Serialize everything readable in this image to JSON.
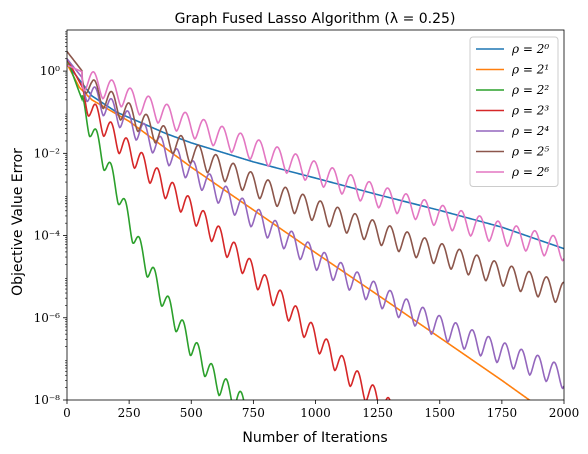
{
  "chart_data": {
    "type": "line",
    "title": "Graph Fused Lasso Algorithm (λ = 0.25)",
    "xlabel": "Number of Iterations",
    "ylabel": "Objective Value Error",
    "xlim": [
      0,
      2000
    ],
    "ylim": [
      1e-08,
      10
    ],
    "yscale": "log",
    "grid": false,
    "legend_position": "top-right",
    "x_ticks": [
      "0",
      "250",
      "500",
      "750",
      "1000",
      "1250",
      "1500",
      "1750",
      "2000"
    ],
    "y_ticks": [
      "10⁻⁸",
      "10⁻⁶",
      "10⁻⁴",
      "10⁻²",
      "10⁰"
    ],
    "x_tick_values": [
      0,
      250,
      500,
      750,
      1000,
      1250,
      1500,
      1750,
      2000
    ],
    "y_tick_values": [
      1e-08,
      1e-06,
      0.0001,
      0.01,
      1
    ],
    "series": [
      {
        "name": "ρ = 2⁰",
        "color": "#1f77b4",
        "oscillating": false,
        "points": [
          [
            0,
            1.5
          ],
          [
            100,
            0.25
          ],
          [
            200,
            0.1
          ],
          [
            300,
            0.055
          ],
          [
            400,
            0.03
          ],
          [
            500,
            0.018
          ],
          [
            750,
            0.0062
          ],
          [
            1000,
            0.0025
          ],
          [
            1250,
            0.00099
          ],
          [
            1500,
            0.00041
          ],
          [
            1750,
            0.00016
          ],
          [
            2000,
            4.8e-05
          ]
        ]
      },
      {
        "name": "ρ = 2¹",
        "color": "#ff7f0e",
        "oscillating": false,
        "points": [
          [
            0,
            1.5
          ],
          [
            50,
            0.4
          ],
          [
            100,
            0.2
          ],
          [
            250,
            0.06
          ],
          [
            500,
            0.0046
          ],
          [
            750,
            0.00042
          ],
          [
            1000,
            3.82e-05
          ],
          [
            1250,
            3.6e-06
          ],
          [
            1500,
            3.3e-07
          ],
          [
            1750,
            3e-08
          ],
          [
            2000,
            2.5e-09
          ]
        ]
      },
      {
        "name": "ρ = 2²",
        "color": "#2ca02c",
        "oscillating": true,
        "points": [
          [
            0,
            2.0
          ],
          [
            50,
            0.3
          ],
          [
            100,
            0.05
          ],
          [
            150,
            0.01
          ],
          [
            200,
            0.002
          ],
          [
            250,
            0.0003
          ],
          [
            300,
            5e-05
          ],
          [
            400,
            3e-06
          ],
          [
            500,
            3e-07
          ],
          [
            600,
            4e-08
          ],
          [
            700,
            1.2e-08
          ],
          [
            750,
            8e-09
          ]
        ]
      },
      {
        "name": "ρ = 2³",
        "color": "#d62728",
        "oscillating": true,
        "points": [
          [
            0,
            2.0
          ],
          [
            100,
            0.15
          ],
          [
            200,
            0.03
          ],
          [
            300,
            0.008
          ],
          [
            400,
            0.002
          ],
          [
            500,
            0.0006
          ],
          [
            600,
            0.00015
          ],
          [
            700,
            3.5e-05
          ],
          [
            800,
            8e-06
          ],
          [
            900,
            2e-06
          ],
          [
            1000,
            4.5e-07
          ],
          [
            1100,
            1e-07
          ],
          [
            1200,
            2.5e-08
          ],
          [
            1300,
            8e-09
          ]
        ]
      },
      {
        "name": "ρ = 2⁴",
        "color": "#9467bd",
        "oscillating": true,
        "points": [
          [
            0,
            2.0
          ],
          [
            100,
            0.35
          ],
          [
            200,
            0.13
          ],
          [
            300,
            0.045
          ],
          [
            400,
            0.015
          ],
          [
            500,
            0.0054
          ],
          [
            600,
            0.0018
          ],
          [
            700,
            0.00065
          ],
          [
            800,
            0.00025
          ],
          [
            900,
            0.0001
          ],
          [
            1000,
            4e-05
          ],
          [
            1100,
            1.7e-05
          ],
          [
            1200,
            7.6e-06
          ],
          [
            1300,
            3.5e-06
          ],
          [
            1400,
            1.7e-06
          ],
          [
            1500,
            8.5e-07
          ],
          [
            1600,
            4.6e-07
          ],
          [
            1700,
            2.6e-07
          ],
          [
            1800,
            1.5e-07
          ],
          [
            1900,
            9e-08
          ],
          [
            2000,
            5e-08
          ]
        ]
      },
      {
        "name": "ρ = 2⁵",
        "color": "#8c564b",
        "oscillating": true,
        "points": [
          [
            0,
            3.0
          ],
          [
            100,
            0.5
          ],
          [
            200,
            0.2
          ],
          [
            300,
            0.08
          ],
          [
            400,
            0.032
          ],
          [
            500,
            0.015
          ],
          [
            600,
            0.007
          ],
          [
            700,
            0.0035
          ],
          [
            800,
            0.0018
          ],
          [
            900,
            0.001
          ],
          [
            1000,
            0.00058
          ],
          [
            1100,
            0.00035
          ],
          [
            1200,
            0.00021
          ],
          [
            1300,
            0.00013
          ],
          [
            1400,
            8e-05
          ],
          [
            1500,
            5e-05
          ],
          [
            1600,
            3.2e-05
          ],
          [
            1700,
            2e-05
          ],
          [
            1800,
            1.3e-05
          ],
          [
            1900,
            8.5e-06
          ],
          [
            2000,
            5.5e-06
          ]
        ]
      },
      {
        "name": "ρ = 2⁶",
        "color": "#e377c2",
        "oscillating": true,
        "points": [
          [
            0,
            1.4
          ],
          [
            250,
            0.3
          ],
          [
            500,
            0.065
          ],
          [
            750,
            0.018
          ],
          [
            1000,
            0.0048
          ],
          [
            1250,
            0.0013
          ],
          [
            1500,
            0.00043
          ],
          [
            1750,
            0.00016
          ],
          [
            2000,
            6.5e-05
          ]
        ]
      }
    ]
  }
}
